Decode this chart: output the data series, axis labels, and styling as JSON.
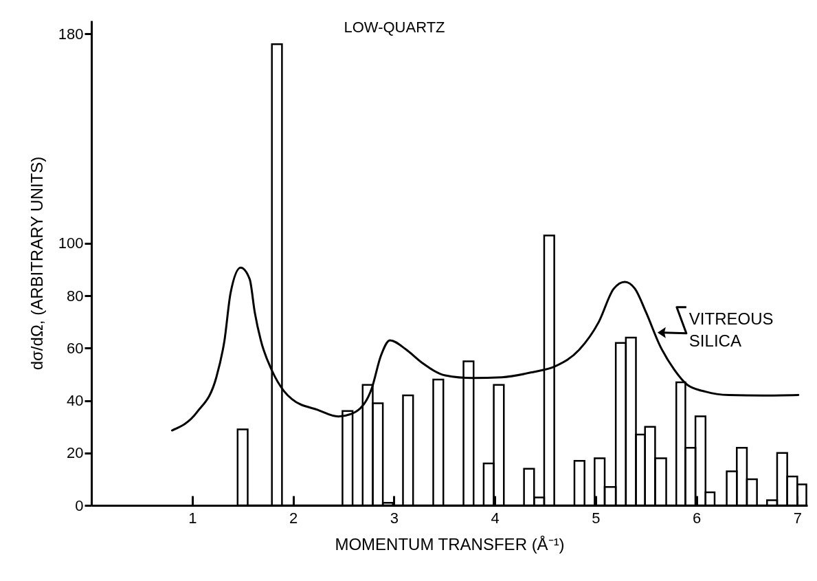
{
  "chart_data": {
    "type": "histogram",
    "title": "LOW-QUARTZ",
    "xlabel": "MOMENTUM TRANSFER (Å⁻¹)",
    "ylabel": "dσ/dΩ, (ARBITRARY UNITS)",
    "xlim": [
      0,
      7.1
    ],
    "xticks": [
      1,
      2,
      3,
      4,
      5,
      6,
      7
    ],
    "ylim": [
      0,
      185
    ],
    "yticks": [
      0,
      20,
      40,
      60,
      80,
      100,
      180
    ],
    "grid": false,
    "annotations": [
      {
        "text": "VITREOUS SILICA",
        "x": 5.6,
        "y": 62
      }
    ],
    "series": [
      {
        "color": "#000000",
        "bins": [
          1.45,
          1.55,
          1.79,
          1.89,
          2.49,
          2.59,
          2.69,
          2.79,
          2.89,
          2.99,
          3.09,
          3.19,
          3.39,
          3.49,
          3.69,
          3.79,
          3.89,
          3.99,
          4.09,
          4.29,
          4.39,
          4.49,
          4.59,
          4.79,
          4.89,
          4.99,
          5.09,
          5.2,
          5.3,
          5.4,
          5.49,
          5.59,
          5.7,
          5.8,
          5.89,
          5.99,
          6.09,
          6.18,
          6.3,
          6.4,
          6.5,
          6.6,
          6.7,
          6.8,
          6.9,
          7.0,
          7.09
        ],
        "values": [
          29,
          0,
          176,
          0,
          36,
          0,
          46,
          39,
          1,
          0,
          42,
          0,
          48,
          0,
          55,
          0,
          16,
          46,
          0,
          14,
          3,
          103,
          0,
          17,
          0,
          18,
          7,
          62,
          64,
          27,
          30,
          18,
          0,
          47,
          22,
          34,
          5,
          0,
          13,
          22,
          10,
          0,
          2,
          20,
          11,
          8
        ]
      },
      {
        "type": "line",
        "color": "#000000",
        "line_style": "solid",
        "marker": "none",
        "x": [
          0.8,
          1.05,
          1.24,
          1.32,
          1.38,
          1.48,
          1.57,
          1.62,
          1.68,
          1.79,
          1.91,
          1.99,
          2.24,
          2.45,
          2.62,
          2.78,
          2.87,
          2.96,
          3.12,
          3.28,
          3.51,
          3.78,
          4.07,
          4.37,
          4.6,
          4.84,
          5.03,
          5.18,
          5.29,
          5.39,
          5.5,
          5.64,
          5.78,
          5.91,
          6.09,
          6.32,
          6.66,
          7.01
        ],
        "values": [
          28.6,
          35.7,
          49,
          63,
          81,
          90.7,
          86.3,
          73.7,
          63,
          51.5,
          43.6,
          40.5,
          36.5,
          33.9,
          35.7,
          44.6,
          57,
          63,
          59.5,
          54.4,
          49.6,
          48.6,
          48.9,
          50.8,
          53.1,
          59.5,
          69.9,
          82.7,
          85.3,
          82.7,
          73.7,
          60.8,
          51.8,
          46,
          43.4,
          42.1,
          41.9,
          42.1
        ]
      }
    ]
  }
}
